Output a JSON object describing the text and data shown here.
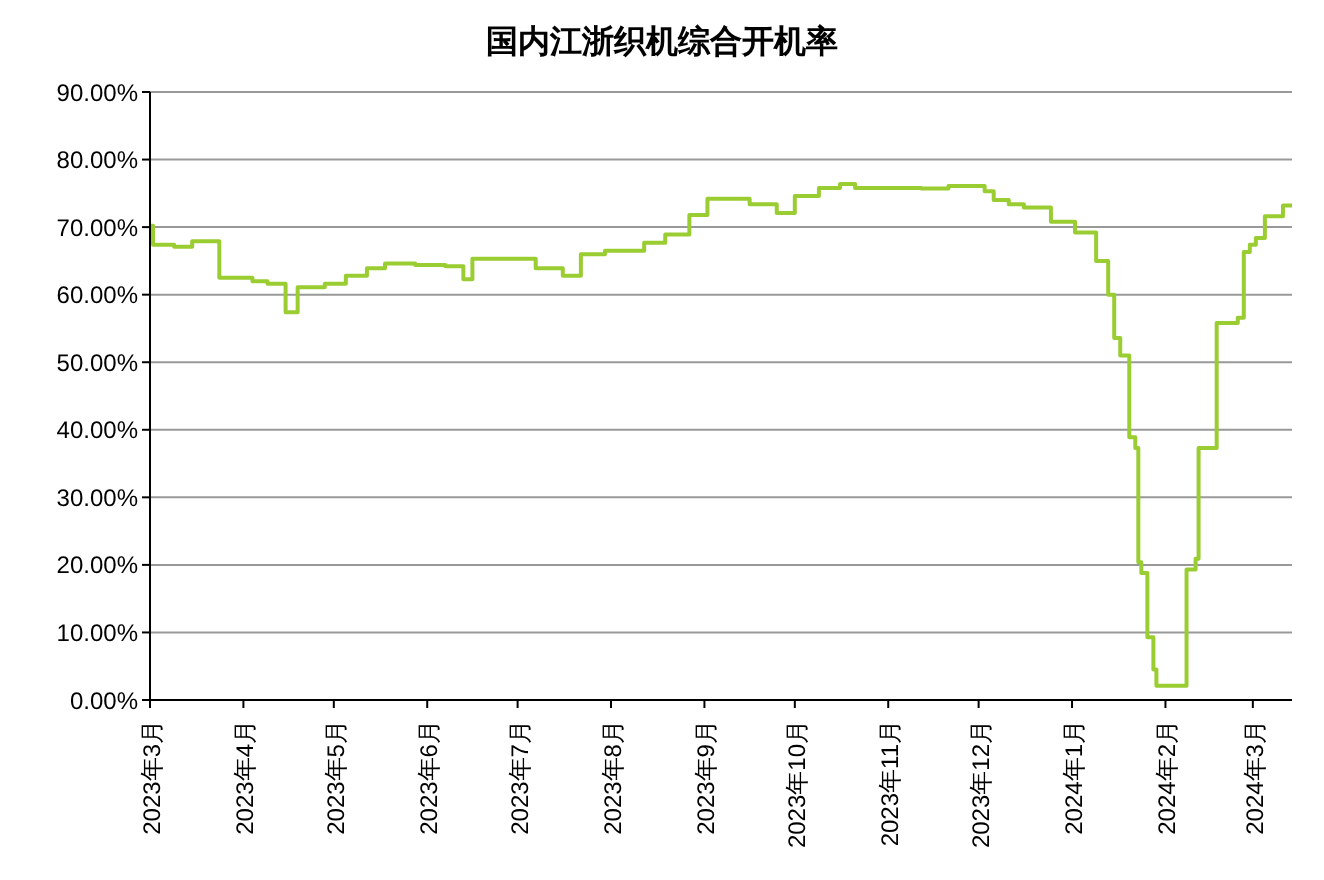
{
  "chart_data": {
    "type": "step",
    "title": "国内江浙织机综合开机率",
    "x": [
      "2023-03-01",
      "2023-03-02",
      "2023-03-09",
      "2023-03-15",
      "2023-03-24",
      "2023-04-04",
      "2023-04-09",
      "2023-04-15",
      "2023-04-19",
      "2023-04-28",
      "2023-05-05",
      "2023-05-12",
      "2023-05-18",
      "2023-05-28",
      "2023-06-07",
      "2023-06-13",
      "2023-06-16",
      "2023-07-07",
      "2023-07-16",
      "2023-07-22",
      "2023-07-30",
      "2023-08-12",
      "2023-08-19",
      "2023-08-27",
      "2023-09-02",
      "2023-09-16",
      "2023-09-25",
      "2023-10-01",
      "2023-10-09",
      "2023-10-16",
      "2023-10-21",
      "2023-11-12",
      "2023-11-21",
      "2023-12-03",
      "2023-12-06",
      "2023-12-11",
      "2023-12-16",
      "2023-12-25",
      "2024-01-02",
      "2024-01-09",
      "2024-01-13",
      "2024-01-15",
      "2024-01-17",
      "2024-01-20",
      "2024-01-22",
      "2024-01-23",
      "2024-01-24",
      "2024-01-26",
      "2024-01-28",
      "2024-01-29",
      "2024-02-08",
      "2024-02-11",
      "2024-02-12",
      "2024-02-18",
      "2024-02-25",
      "2024-02-27",
      "2024-02-29",
      "2024-03-02",
      "2024-03-05",
      "2024-03-11",
      "2024-03-14"
    ],
    "series": [
      {
        "color": "#9acd32",
        "values": [
          70.2,
          67.4,
          67.1,
          67.9,
          62.5,
          62.0,
          61.6,
          57.4,
          61.1,
          61.6,
          62.8,
          63.9,
          64.6,
          64.4,
          64.2,
          62.3,
          65.3,
          63.9,
          62.8,
          66.0,
          66.5,
          67.7,
          68.9,
          71.8,
          74.2,
          73.4,
          72.1,
          74.6,
          75.8,
          76.4,
          75.8,
          75.7,
          76.1,
          75.3,
          74.0,
          73.4,
          72.9,
          70.8,
          69.2,
          65.0,
          60.0,
          53.6,
          51.0,
          38.9,
          37.3,
          20.4,
          18.8,
          9.3,
          4.5,
          2.1,
          19.3,
          20.9,
          37.3,
          55.8,
          56.6,
          66.3,
          67.4,
          68.4,
          71.6,
          73.2,
          73.2
        ]
      }
    ],
    "xlim": [
      "2023-03-01",
      "2024-03-14"
    ],
    "xticks": [
      {
        "value": "2023-03-01",
        "label": "2023年3月"
      },
      {
        "value": "2023-04-01",
        "label": "2023年4月"
      },
      {
        "value": "2023-05-01",
        "label": "2023年5月"
      },
      {
        "value": "2023-06-01",
        "label": "2023年6月"
      },
      {
        "value": "2023-07-01",
        "label": "2023年7月"
      },
      {
        "value": "2023-08-01",
        "label": "2023年8月"
      },
      {
        "value": "2023-09-01",
        "label": "2023年9月"
      },
      {
        "value": "2023-10-01",
        "label": "2023年10月"
      },
      {
        "value": "2023-11-01",
        "label": "2023年11月"
      },
      {
        "value": "2023-12-01",
        "label": "2023年12月"
      },
      {
        "value": "2024-01-01",
        "label": "2024年1月"
      },
      {
        "value": "2024-02-01",
        "label": "2024年2月"
      },
      {
        "value": "2024-03-01",
        "label": "2024年3月"
      }
    ],
    "ylim": [
      0,
      90
    ],
    "yticks": [
      {
        "value": 0,
        "label": "0.00%"
      },
      {
        "value": 10,
        "label": "10.00%"
      },
      {
        "value": 20,
        "label": "20.00%"
      },
      {
        "value": 30,
        "label": "30.00%"
      },
      {
        "value": 40,
        "label": "40.00%"
      },
      {
        "value": 50,
        "label": "50.00%"
      },
      {
        "value": 60,
        "label": "60.00%"
      },
      {
        "value": 70,
        "label": "70.00%"
      },
      {
        "value": 80,
        "label": "80.00%"
      },
      {
        "value": 90,
        "label": "90.00%"
      }
    ],
    "grid": "y",
    "legend": false,
    "marker": "none",
    "line_style": "solid"
  }
}
